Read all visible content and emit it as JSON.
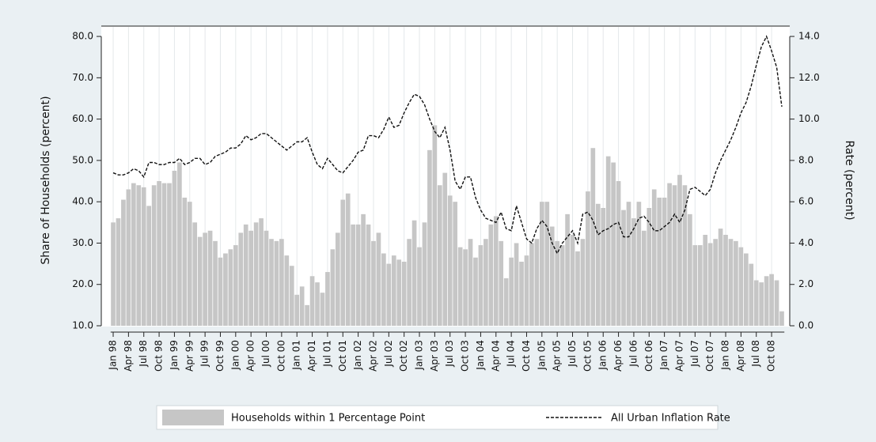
{
  "chart_data": {
    "type": "bar",
    "y_label": "Share of Households (percent)",
    "y2_label": "Rate (percent)",
    "categories": [
      "Jan 98",
      null,
      null,
      "Apr 98",
      null,
      null,
      "Jul 98",
      null,
      null,
      "Oct 98",
      null,
      null,
      "Jan 99",
      null,
      null,
      "Apr 99",
      null,
      null,
      "Jul 99",
      null,
      null,
      "Oct 99",
      null,
      null,
      "Jan 00",
      null,
      null,
      "Apr 00",
      null,
      null,
      "Jul 00",
      null,
      null,
      "Oct 00",
      null,
      null,
      "Jan 01",
      null,
      null,
      "Apr 01",
      null,
      null,
      "Jul 01",
      null,
      null,
      "Oct 01",
      null,
      null,
      "Jan 02",
      null,
      null,
      "Apr 02",
      null,
      null,
      "Jul 02",
      null,
      null,
      "Oct 02",
      null,
      null,
      "Jan 03",
      null,
      null,
      "Apr 03",
      null,
      null,
      "Jul 03",
      null,
      null,
      "Oct 03",
      null,
      null,
      "Jan 04",
      null,
      null,
      "Apr 04",
      null,
      null,
      "Jul 04",
      null,
      null,
      "Oct 04",
      null,
      null,
      "Jan 05",
      null,
      null,
      "Apr 05",
      null,
      null,
      "Jul 05",
      null,
      null,
      "Oct 05",
      null,
      null,
      "Jan 06",
      null,
      null,
      "Apr 06",
      null,
      null,
      "Jul 06",
      null,
      null,
      "Oct 06",
      null,
      null,
      "Jan 07",
      null,
      null,
      "Apr 07",
      null,
      null,
      "Jul 07",
      null,
      null,
      "Oct 07",
      null,
      null,
      "Jan 08",
      null,
      null,
      "Apr 08",
      null,
      null,
      "Jul 08",
      null,
      null,
      "Oct 08",
      null,
      null
    ],
    "series": [
      {
        "name": "Households within 1 Percentage Point",
        "type": "bar",
        "color": "#c6c6c6",
        "axis": "y",
        "values": [
          35,
          36,
          40.5,
          43,
          44.5,
          44,
          43.5,
          39,
          44,
          45,
          44.5,
          44.5,
          47.5,
          49.5,
          41,
          40,
          35,
          31.5,
          32.5,
          33,
          30.5,
          26.5,
          27.5,
          28.5,
          29.5,
          32.5,
          34.5,
          33,
          35,
          36,
          33,
          31,
          30.5,
          31,
          27,
          24.5,
          17.5,
          19.5,
          15,
          22,
          20.5,
          18,
          23,
          28.5,
          32.5,
          40.5,
          42,
          34.5,
          34.5,
          37,
          34.5,
          30.5,
          32.5,
          27.5,
          25,
          27,
          26,
          25.5,
          31,
          35.5,
          29,
          35,
          52.5,
          58.5,
          44,
          47,
          41.5,
          40,
          29,
          28.5,
          31,
          26.5,
          29.5,
          31,
          34.5,
          36.5,
          30.5,
          21.5,
          26.5,
          30,
          25.5,
          27,
          30,
          31,
          40,
          40,
          34,
          30.5,
          29.5,
          37,
          32,
          28,
          31,
          42.5,
          53,
          39.5,
          38.5,
          51,
          49.5,
          45,
          38,
          40,
          36,
          40,
          33,
          38.5,
          43,
          41,
          41,
          44.5,
          44,
          46.5,
          44,
          37,
          29.5,
          29.5,
          32,
          30,
          31,
          33.5,
          32,
          31,
          30.5,
          29,
          27.5,
          25,
          21,
          20.5,
          22,
          22.5,
          21,
          13.5
        ]
      },
      {
        "name": "All Urban Inflation Rate",
        "type": "line",
        "color": "#111111",
        "axis": "y2",
        "dashed": true,
        "values": [
          7.4,
          7.3,
          7.3,
          7.4,
          7.6,
          7.5,
          7.2,
          7.9,
          7.9,
          7.8,
          7.8,
          7.9,
          7.9,
          8.1,
          7.8,
          7.9,
          8.1,
          8.1,
          7.8,
          7.9,
          8.2,
          8.3,
          8.4,
          8.6,
          8.6,
          8.8,
          9.2,
          9.0,
          9.1,
          9.3,
          9.3,
          9.1,
          8.9,
          8.7,
          8.5,
          8.7,
          8.9,
          8.9,
          9.1,
          8.4,
          7.8,
          7.6,
          8.1,
          7.8,
          7.5,
          7.4,
          7.7,
          8.0,
          8.4,
          8.5,
          9.2,
          9.2,
          9.1,
          9.5,
          10.1,
          9.6,
          9.7,
          10.3,
          10.8,
          11.2,
          11.1,
          10.7,
          10.0,
          9.4,
          9.1,
          9.6,
          8.5,
          7.0,
          6.6,
          7.2,
          7.2,
          6.2,
          5.6,
          5.2,
          5.1,
          5.0,
          5.5,
          4.7,
          4.6,
          5.8,
          5.0,
          4.2,
          4.0,
          4.7,
          5.1,
          4.8,
          4.0,
          3.5,
          4.0,
          4.3,
          4.6,
          4.0,
          5.4,
          5.5,
          5.1,
          4.4,
          4.6,
          4.7,
          4.9,
          5.0,
          4.3,
          4.3,
          4.7,
          5.2,
          5.3,
          5.0,
          4.6,
          4.6,
          4.8,
          5.0,
          5.4,
          5.0,
          5.6,
          6.6,
          6.7,
          6.5,
          6.3,
          6.6,
          7.4,
          8.0,
          8.5,
          9.0,
          9.6,
          10.3,
          10.8,
          11.6,
          12.6,
          13.5,
          14.0,
          13.3,
          12.5,
          10.6
        ]
      }
    ],
    "ylim": [
      10,
      82.5
    ],
    "yticks": [
      {
        "value": 10,
        "label": "10.0"
      },
      {
        "value": 20,
        "label": "20.0"
      },
      {
        "value": 30,
        "label": "30.0"
      },
      {
        "value": 40,
        "label": "40.0"
      },
      {
        "value": 50,
        "label": "50.0"
      },
      {
        "value": 60,
        "label": "60.0"
      },
      {
        "value": 70,
        "label": "70.0"
      },
      {
        "value": 80,
        "label": "80.0"
      }
    ],
    "y2lim": [
      0,
      14.5
    ],
    "y2ticks": [
      {
        "value": 0,
        "label": "0.0"
      },
      {
        "value": 2,
        "label": "2.0"
      },
      {
        "value": 4,
        "label": "4.0"
      },
      {
        "value": 6,
        "label": "6.0"
      },
      {
        "value": 8,
        "label": "8.0"
      },
      {
        "value": 10,
        "label": "10.0"
      },
      {
        "value": 12,
        "label": "12.0"
      },
      {
        "value": 14,
        "label": "14.0"
      }
    ],
    "xgrid": true,
    "legend": "bottom"
  }
}
